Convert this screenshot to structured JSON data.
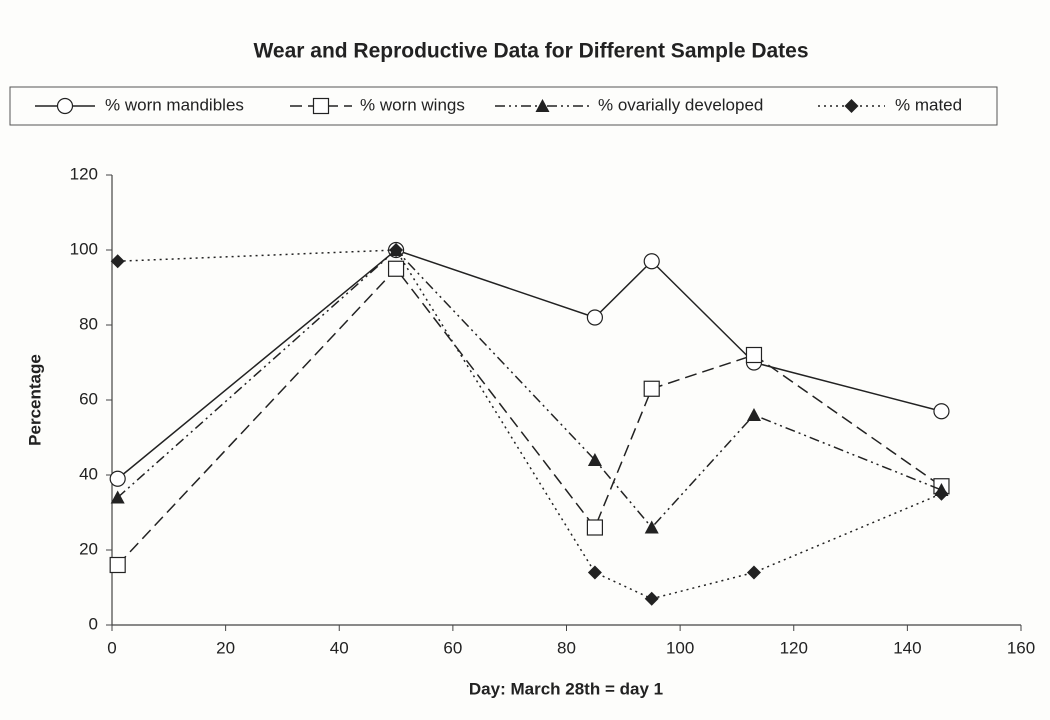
{
  "chart_data": {
    "type": "line",
    "title": "Wear and Reproductive Data for Different Sample Dates",
    "x_label": "Day:  March 28th = day 1",
    "y_label": "Percentage",
    "x": [
      1,
      50,
      85,
      95,
      113,
      146
    ],
    "series": [
      {
        "name": "% worn mandibles",
        "color": "#222222",
        "marker": "circle",
        "line_style": "solid",
        "values": [
          39,
          100,
          82,
          97,
          70,
          57
        ]
      },
      {
        "name": "% worn wings",
        "color": "#222222",
        "marker": "square",
        "line_style": "dashed",
        "values": [
          16,
          95,
          26,
          63,
          72,
          37
        ]
      },
      {
        "name": "% ovarially developed",
        "color": "#222222",
        "marker": "triangle",
        "line_style": "dashdotdot",
        "values": [
          34,
          100,
          44,
          26,
          56,
          36
        ]
      },
      {
        "name": "% mated",
        "color": "#222222",
        "marker": "diamond",
        "line_style": "dotted",
        "values": [
          97,
          100,
          14,
          7,
          14,
          35
        ]
      }
    ],
    "xlim": [
      0,
      160
    ],
    "xticks": [
      0,
      20,
      40,
      60,
      80,
      100,
      120,
      140,
      160
    ],
    "ylim": [
      0,
      120
    ],
    "yticks": [
      0,
      20,
      40,
      60,
      80,
      100,
      120
    ],
    "grid": false,
    "legend": "top"
  }
}
